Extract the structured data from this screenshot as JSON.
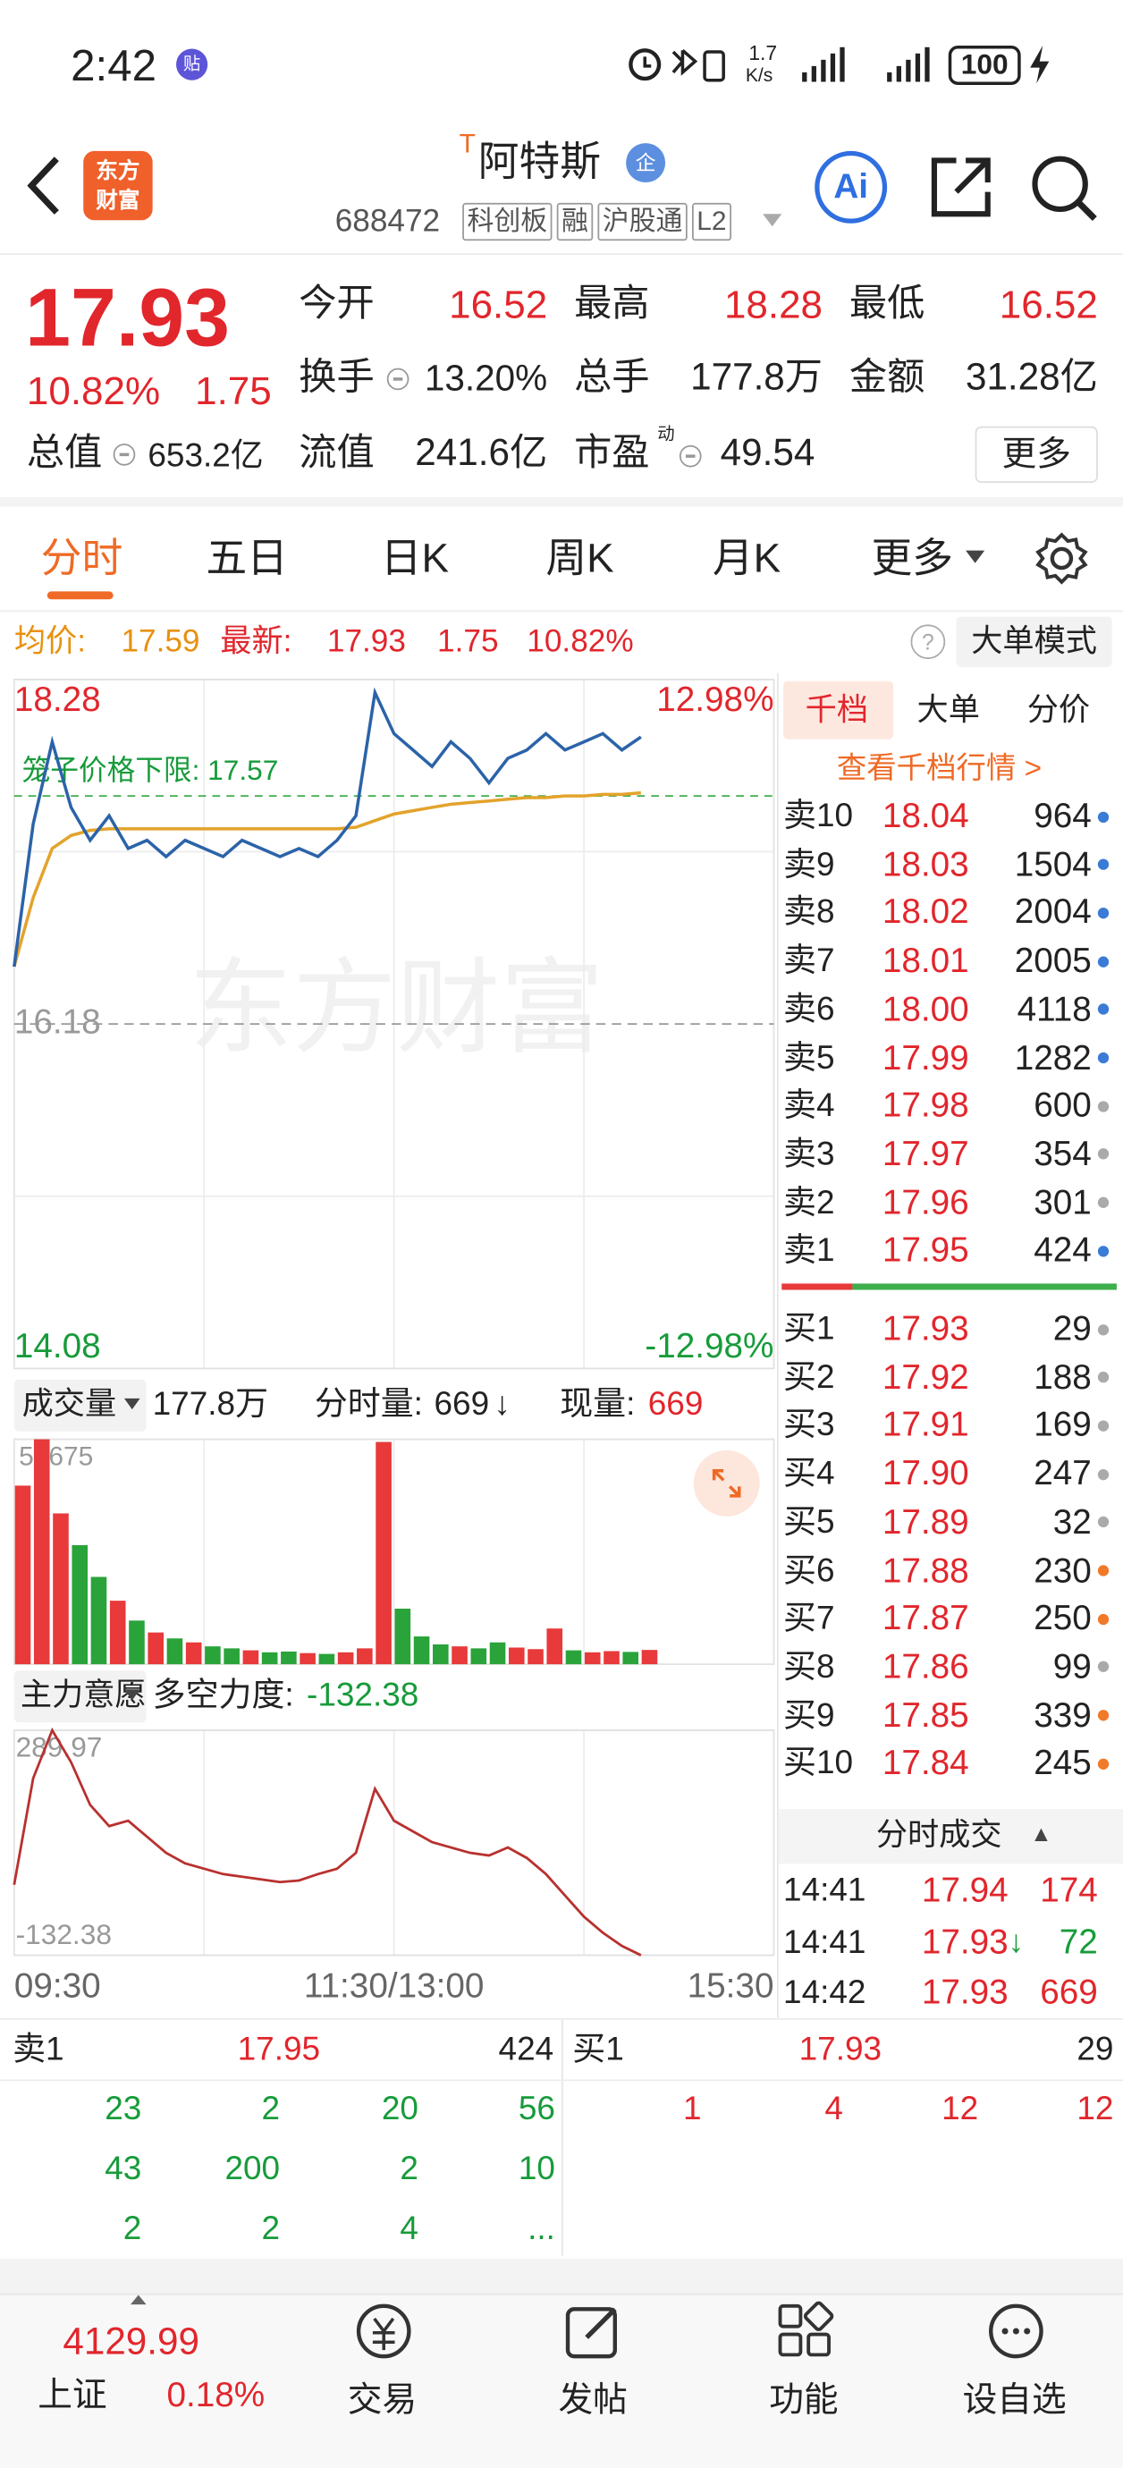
{
  "status_bar": {
    "time": "2:42",
    "badge": "贴",
    "net_speed": "1.7",
    "net_unit": "K/s",
    "battery": "100"
  },
  "header": {
    "logo": [
      "东方",
      "财富"
    ],
    "mark": "T",
    "title": "阿特斯",
    "badge": "企",
    "code": "688472",
    "tags": [
      "科创板",
      "融",
      "沪股通",
      "L2"
    ],
    "ai": "Ai"
  },
  "quote": {
    "price": "17.93",
    "change_pct": "10.82%",
    "change": "1.75",
    "open_label": "今开",
    "open": "16.52",
    "high_label": "最高",
    "high": "18.28",
    "low_label": "最低",
    "low": "16.52",
    "turnover_label": "换手",
    "turnover": "13.20%",
    "hands_label": "总手",
    "hands": "177.8万",
    "amount_label": "金额",
    "amount": "31.28亿",
    "mcap_label": "总值",
    "mcap": "653.2亿",
    "float_label": "流值",
    "float": "241.6亿",
    "pe_label": "市盈",
    "pe_sup": "动",
    "pe": "49.54",
    "more": "更多"
  },
  "tabs": [
    "分时",
    "五日",
    "日K",
    "周K",
    "月K",
    "更多"
  ],
  "info_bar": {
    "avg_label": "均价:",
    "avg": "17.59",
    "last_label": "最新:",
    "last": "17.93",
    "change": "1.75",
    "change_pct": "10.82%",
    "mode": "大单模式"
  },
  "watermark": "东方财富",
  "volume_header": {
    "label": "成交量",
    "total": "177.8万",
    "minute_label": "分时量:",
    "minute": "669",
    "arrow": "↓",
    "current_label": "现量:",
    "current": "669"
  },
  "force_header": {
    "label": "主力意愿",
    "metric_label": "多空力度:",
    "metric": "-132.38"
  },
  "chart_data": [
    {
      "type": "line",
      "xlim": [
        0,
        240
      ],
      "ylim": [
        14.08,
        18.28
      ],
      "yticks": [
        18.28,
        16.18,
        14.08
      ],
      "pct_labels": [
        "12.98%",
        "-12.98%"
      ],
      "cage_label": "笼子价格下限: ",
      "cage_value": 17.57,
      "x": [
        0,
        6,
        12,
        18,
        24,
        30,
        36,
        42,
        48,
        54,
        60,
        66,
        72,
        78,
        84,
        90,
        96,
        102,
        108,
        114,
        120,
        126,
        132,
        138,
        144,
        150,
        156,
        162,
        168,
        174,
        180,
        186,
        192,
        198
      ],
      "series": [
        {
          "color": "#2b63a8",
          "values": [
            16.53,
            17.4,
            17.9,
            17.5,
            17.3,
            17.45,
            17.25,
            17.3,
            17.2,
            17.3,
            17.25,
            17.2,
            17.3,
            17.25,
            17.2,
            17.25,
            17.2,
            17.3,
            17.45,
            18.2,
            17.95,
            17.85,
            17.75,
            17.9,
            17.8,
            17.65,
            17.8,
            17.85,
            17.95,
            17.85,
            17.9,
            17.95,
            17.85,
            17.93
          ]
        },
        {
          "color": "#e3a32b",
          "values": [
            16.53,
            16.95,
            17.25,
            17.33,
            17.36,
            17.37,
            17.37,
            17.37,
            17.37,
            17.37,
            17.37,
            17.37,
            17.37,
            17.37,
            17.37,
            17.37,
            17.37,
            17.37,
            17.38,
            17.42,
            17.46,
            17.48,
            17.5,
            17.52,
            17.53,
            17.54,
            17.55,
            17.56,
            17.56,
            17.57,
            17.57,
            17.58,
            17.58,
            17.59
          ]
        }
      ]
    },
    {
      "type": "bar",
      "xlim": [
        0,
        240
      ],
      "ylim": [
        0,
        56675
      ],
      "yticks": [
        56675
      ],
      "up_color": "#e8393b",
      "down_color": "#2aa33a",
      "x": [
        0,
        6,
        12,
        18,
        24,
        30,
        36,
        42,
        48,
        54,
        60,
        66,
        72,
        78,
        84,
        90,
        96,
        102,
        108,
        114,
        120,
        126,
        132,
        138,
        144,
        150,
        156,
        162,
        168,
        174,
        180,
        186,
        192,
        198
      ],
      "values": [
        45000,
        56675,
        38000,
        30000,
        22000,
        16000,
        11000,
        8000,
        6500,
        5500,
        4500,
        4000,
        3500,
        3000,
        3200,
        2800,
        2600,
        3000,
        4000,
        56000,
        14000,
        7000,
        5000,
        4500,
        4000,
        5500,
        4200,
        3800,
        9000,
        3500,
        3000,
        3300,
        3100,
        3600
      ]
    },
    {
      "type": "line",
      "xlim": [
        0,
        240
      ],
      "ylim": [
        -132.38,
        289.97
      ],
      "yticks": [
        289.97,
        -132.38
      ],
      "color": "#b8312f",
      "xticks": [
        {
          "value": 0,
          "label": "09:30"
        },
        {
          "value": 120,
          "label": "11:30/13:00"
        },
        {
          "value": 240,
          "label": "15:30"
        }
      ],
      "x": [
        0,
        6,
        12,
        18,
        24,
        30,
        36,
        42,
        48,
        54,
        60,
        66,
        72,
        78,
        84,
        90,
        96,
        102,
        108,
        114,
        120,
        126,
        132,
        138,
        144,
        150,
        156,
        162,
        168,
        174,
        180,
        186,
        192,
        198
      ],
      "values": [
        0,
        200,
        289.97,
        230,
        150,
        110,
        120,
        90,
        60,
        40,
        30,
        20,
        15,
        10,
        5,
        8,
        20,
        30,
        60,
        180,
        120,
        100,
        80,
        70,
        60,
        55,
        70,
        50,
        20,
        -20,
        -60,
        -90,
        -115,
        -132.38
      ]
    }
  ],
  "order_book": {
    "tabs": [
      "千档",
      "大单",
      "分价"
    ],
    "link": "查看千档行情 >",
    "asks": [
      {
        "label": "卖10",
        "price": "18.04",
        "volume": "964",
        "dot": "#3a7bd5"
      },
      {
        "label": "卖9",
        "price": "18.03",
        "volume": "1504",
        "dot": "#3a7bd5"
      },
      {
        "label": "卖8",
        "price": "18.02",
        "volume": "2004",
        "dot": "#3a7bd5"
      },
      {
        "label": "卖7",
        "price": "18.01",
        "volume": "2005",
        "dot": "#3a7bd5"
      },
      {
        "label": "卖6",
        "price": "18.00",
        "volume": "4118",
        "dot": "#3a7bd5"
      },
      {
        "label": "卖5",
        "price": "17.99",
        "volume": "1282",
        "dot": "#3a7bd5"
      },
      {
        "label": "卖4",
        "price": "17.98",
        "volume": "600",
        "dot": "#aaaaaa"
      },
      {
        "label": "卖3",
        "price": "17.97",
        "volume": "354",
        "dot": "#aaaaaa"
      },
      {
        "label": "卖2",
        "price": "17.96",
        "volume": "301",
        "dot": "#aaaaaa"
      },
      {
        "label": "卖1",
        "price": "17.95",
        "volume": "424",
        "dot": "#3a7bd5"
      }
    ],
    "bids": [
      {
        "label": "买1",
        "price": "17.93",
        "volume": "29",
        "dot": "#aaaaaa"
      },
      {
        "label": "买2",
        "price": "17.92",
        "volume": "188",
        "dot": "#aaaaaa"
      },
      {
        "label": "买3",
        "price": "17.91",
        "volume": "169",
        "dot": "#aaaaaa"
      },
      {
        "label": "买4",
        "price": "17.90",
        "volume": "247",
        "dot": "#aaaaaa"
      },
      {
        "label": "买5",
        "price": "17.89",
        "volume": "32",
        "dot": "#aaaaaa"
      },
      {
        "label": "买6",
        "price": "17.88",
        "volume": "230",
        "dot": "#f07a2a"
      },
      {
        "label": "买7",
        "price": "17.87",
        "volume": "250",
        "dot": "#f07a2a"
      },
      {
        "label": "买8",
        "price": "17.86",
        "volume": "99",
        "dot": "#aaaaaa"
      },
      {
        "label": "买9",
        "price": "17.85",
        "volume": "339",
        "dot": "#f07a2a"
      },
      {
        "label": "买10",
        "price": "17.84",
        "volume": "245",
        "dot": "#f07a2a"
      }
    ],
    "trades_title": "分时成交",
    "trades_icon": "▲",
    "trades": [
      {
        "time": "14:41",
        "price": "17.94",
        "volume": "174",
        "color": "#e1262c"
      },
      {
        "time": "14:41",
        "price": "17.93",
        "arrow": "↓",
        "volume": "72",
        "color": "#179b3a"
      },
      {
        "time": "14:42",
        "price": "17.93",
        "volume": "669",
        "color": "#e1262c"
      }
    ]
  },
  "queue": {
    "ask_label": "卖1",
    "ask_price": "17.95",
    "ask_volume": "424",
    "bid_label": "买1",
    "bid_price": "17.93",
    "bid_volume": "29",
    "ask_orders": [
      [
        "23",
        "2",
        "20",
        "56"
      ],
      [
        "43",
        "200",
        "2",
        "10"
      ],
      [
        "2",
        "2",
        "4",
        "..."
      ]
    ],
    "bid_orders": [
      [
        "1",
        "4",
        "12",
        "12"
      ]
    ]
  },
  "tab_bar": {
    "index_value": "4129.99",
    "index_name": "上证",
    "index_change": "0.18%",
    "tabs": [
      "交易",
      "发帖",
      "功能",
      "设自选"
    ]
  }
}
